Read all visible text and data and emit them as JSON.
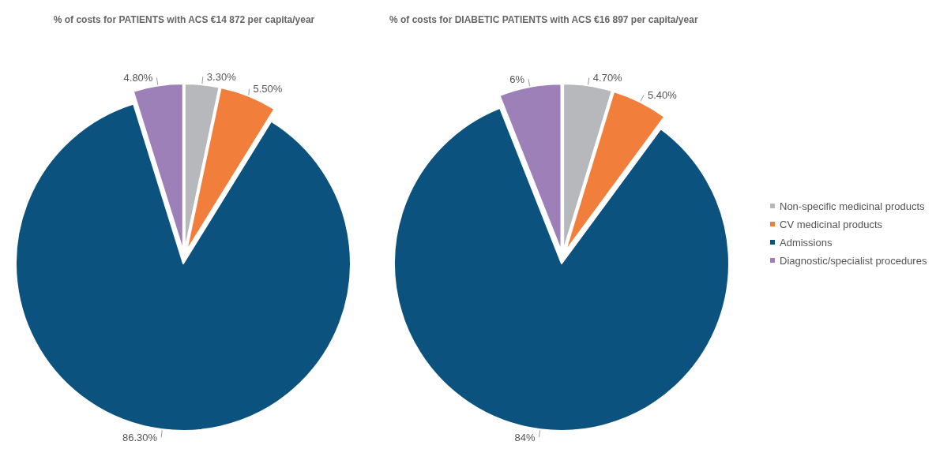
{
  "chart_data": [
    {
      "type": "pie",
      "title": "% of costs for PATIENTS with ACS €14 872 per capita/year",
      "categories": [
        null,
        null,
        null,
        null
      ],
      "values": [
        3.3,
        5.5,
        86.3,
        4.8
      ],
      "colors": [
        "#b7b8bb",
        "#f27e3c",
        "#0b527e",
        "#9e80b8"
      ],
      "value_labels": [
        "3.30%",
        "5.50%",
        "86.30%",
        "4.80%"
      ],
      "legend": false
    },
    {
      "type": "pie",
      "title": "% of costs for DIABETIC PATIENTS with ACS €16 897 per capita/year",
      "categories": [
        "Non-specific medicinal products",
        "CV medicinal products",
        "Admissions",
        "Diagnostic/specialist procedures"
      ],
      "values": [
        4.7,
        5.4,
        84,
        6
      ],
      "colors": [
        "#b7b8bb",
        "#f27e3c",
        "#0b527e",
        "#9e80b8"
      ],
      "value_labels": [
        "4.70%",
        "5.40%",
        "84%",
        "6%"
      ],
      "legend": "right"
    }
  ]
}
